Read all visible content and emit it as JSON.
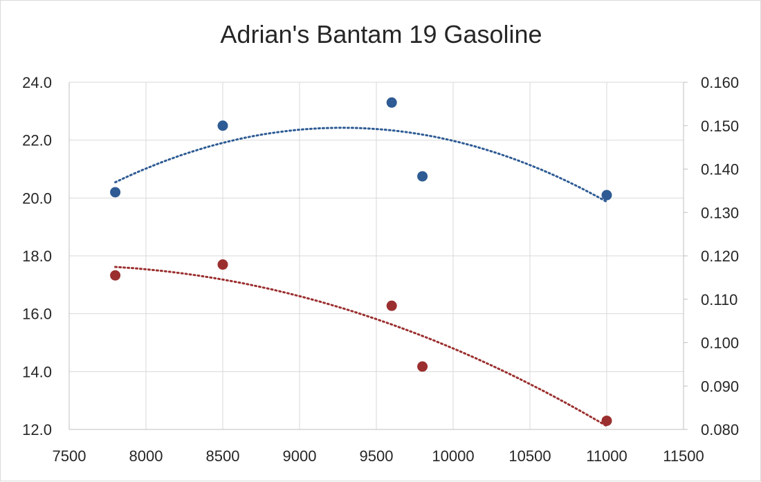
{
  "chart_data": {
    "type": "scatter",
    "title": "Adrian's Bantam 19 Gasoline",
    "xlabel": "",
    "ylabel": "",
    "y2label": "",
    "xlim": [
      7500,
      11500
    ],
    "ylim": [
      12.0,
      24.0
    ],
    "y2lim": [
      0.08,
      0.16
    ],
    "x_ticks": [
      "7500",
      "8000",
      "8500",
      "9000",
      "9500",
      "10000",
      "10500",
      "11000",
      "11500"
    ],
    "y_ticks": [
      "12.0",
      "14.0",
      "16.0",
      "18.0",
      "20.0",
      "22.0",
      "24.0"
    ],
    "y2_ticks": [
      "0.080",
      "0.090",
      "0.100",
      "0.110",
      "0.120",
      "0.130",
      "0.140",
      "0.150",
      "0.160"
    ],
    "grid": true,
    "legend": "none",
    "series": [
      {
        "axis": "left",
        "color": "#2e5b94",
        "points": [
          [
            7800,
            20.2
          ],
          [
            8500,
            22.5
          ],
          [
            9600,
            23.3
          ],
          [
            9800,
            20.75
          ],
          [
            11000,
            20.1
          ]
        ],
        "trendline": {
          "type": "polynomial",
          "order": 2,
          "style": "dotted",
          "x_range": [
            7800,
            11000
          ]
        }
      },
      {
        "axis": "right",
        "color": "#9b2f2f",
        "points": [
          [
            7800,
            0.1155
          ],
          [
            8500,
            0.118
          ],
          [
            9600,
            0.1085
          ],
          [
            9800,
            0.0945
          ],
          [
            11000,
            0.082
          ]
        ],
        "trendline": {
          "type": "polynomial",
          "order": 2,
          "style": "dotted",
          "x_range": [
            7800,
            11000
          ]
        }
      }
    ]
  }
}
